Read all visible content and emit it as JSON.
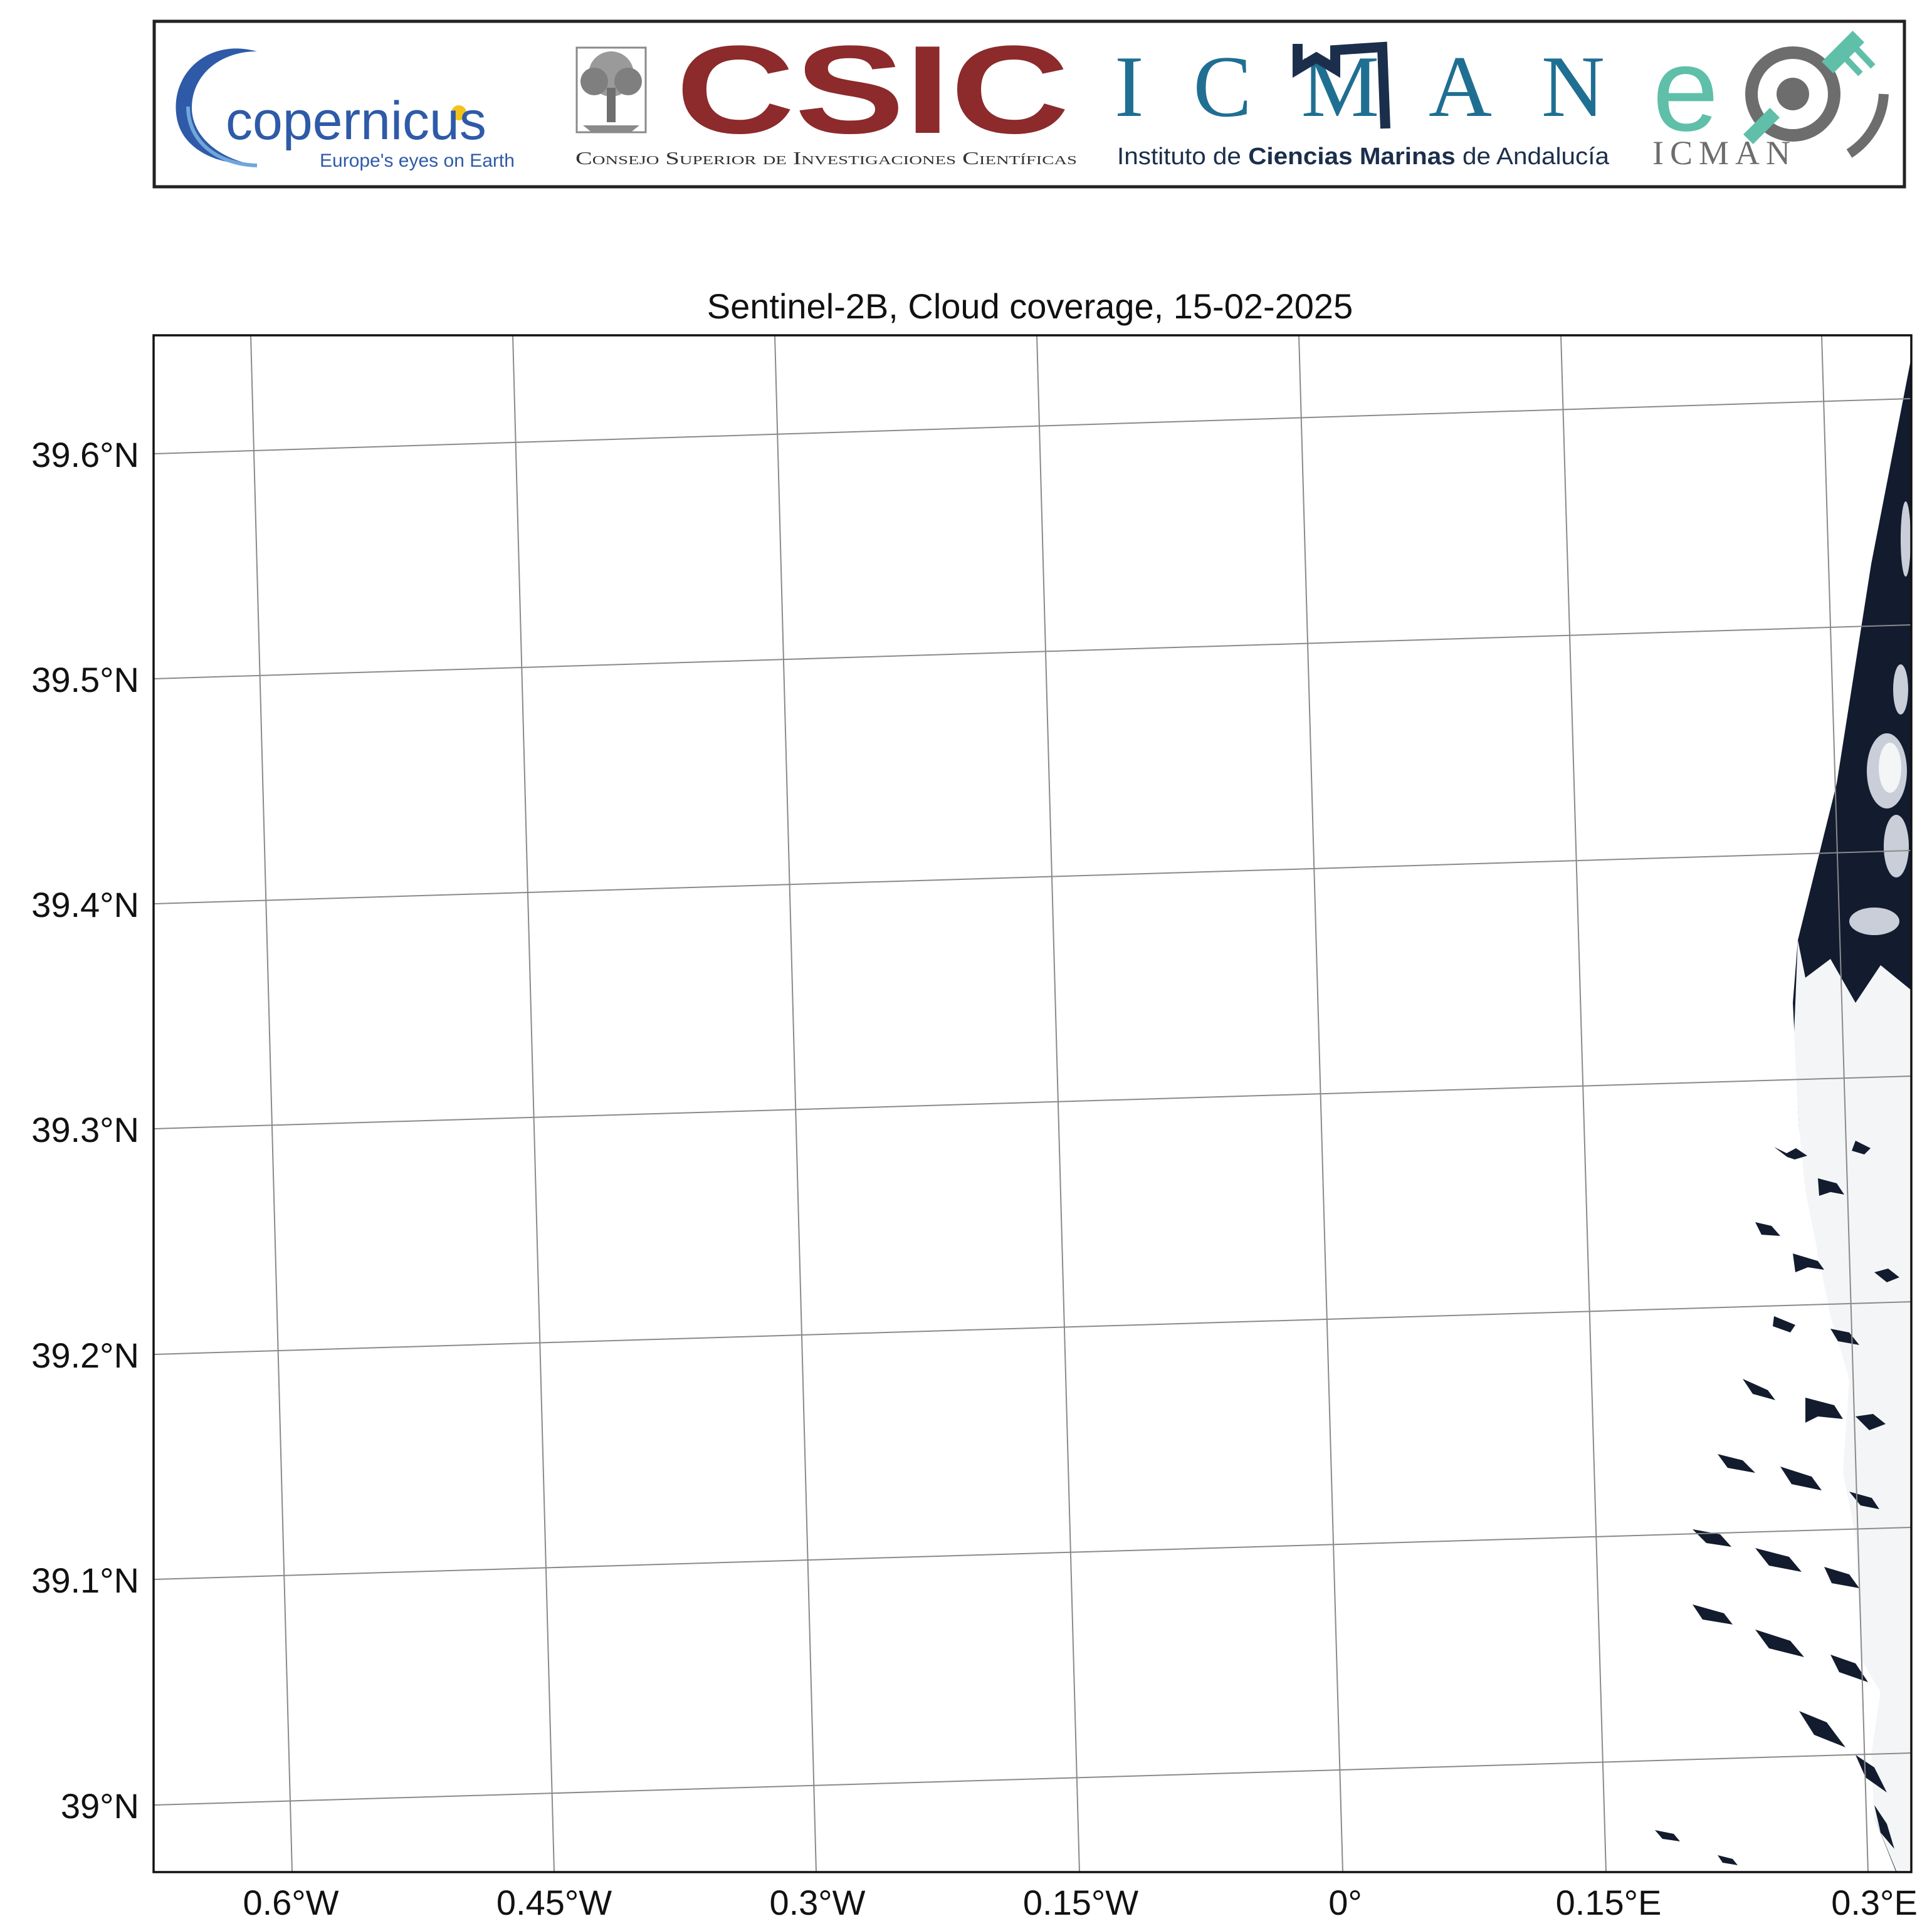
{
  "title": "Sentinel-2B, Cloud coverage, 15-02-2025",
  "logos": {
    "copernicus": {
      "name": "copernicus",
      "tagline": "Europe's eyes on Earth",
      "colors": {
        "blue": "#2e5aa8",
        "light_blue": "#6fa6dc",
        "yellow": "#f2c21a"
      }
    },
    "csic": {
      "name": "CSIC",
      "subtitle": "Consejo Superior de Investigaciones Científicas",
      "colors": {
        "maroon": "#8c2a2c",
        "grey": "#8a8a8a"
      }
    },
    "icman": {
      "name": "ICMAN",
      "subtitle_parts": [
        "Instituto de ",
        "Ciencias Marinas",
        " de Andalucía"
      ],
      "colors": {
        "teal": "#1f6f92",
        "navy": "#1b2f4c"
      }
    },
    "icman_eo": {
      "name": "eo ICMAN",
      "colors": {
        "teal": "#5fbfa9",
        "grey": "#6d6d6d"
      }
    }
  },
  "map": {
    "x_ticks": [
      {
        "value": -0.6,
        "label": "0.6°W"
      },
      {
        "value": -0.45,
        "label": "0.45°W"
      },
      {
        "value": -0.3,
        "label": "0.3°W"
      },
      {
        "value": -0.15,
        "label": "0.15°W"
      },
      {
        "value": 0.0,
        "label": "0°"
      },
      {
        "value": 0.15,
        "label": "0.15°E"
      },
      {
        "value": 0.3,
        "label": "0.3°E"
      }
    ],
    "y_ticks": [
      {
        "value": 39.6,
        "label": "39.6°N"
      },
      {
        "value": 39.5,
        "label": "39.5°N"
      },
      {
        "value": 39.4,
        "label": "39.4°N"
      },
      {
        "value": 39.3,
        "label": "39.3°N"
      },
      {
        "value": 39.2,
        "label": "39.2°N"
      },
      {
        "value": 39.1,
        "label": "39.1°N"
      },
      {
        "value": 39.0,
        "label": "39°N"
      }
    ],
    "extent": {
      "lon": [
        -0.678,
        0.32
      ],
      "lat": [
        38.97,
        39.65
      ]
    },
    "gridlines": true,
    "colors": {
      "water": "#121c2e",
      "cloud": "#f4f5f7",
      "grid": "#8a8a8a"
    }
  }
}
